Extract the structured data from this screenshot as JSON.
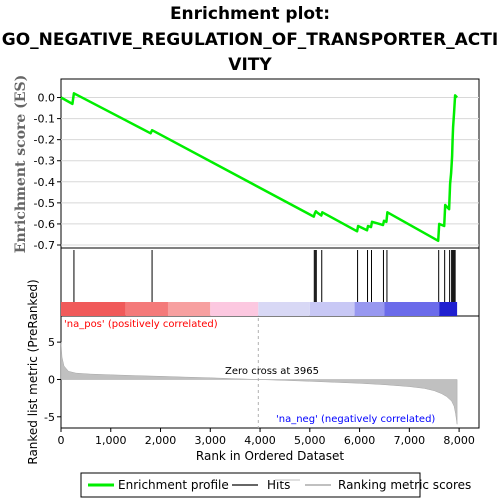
{
  "title_lines": [
    "Enrichment plot:",
    "GO_NEGATIVE_REGULATION_OF_TRANSPORTER_ACTI",
    "VITY"
  ],
  "colors": {
    "enrichment_line": "#00ee00",
    "hits": "#000000",
    "ranking_fill": "#c0c0c0",
    "pos_label": "#ff0000",
    "neg_label": "#0000ff",
    "zero_cross_line": "#b0b0b0"
  },
  "chart_data": {
    "type": "line",
    "xlabel": "Rank in Ordered Dataset",
    "xlim": [
      0,
      8400
    ],
    "x_ticks": [
      0,
      1000,
      2000,
      3000,
      4000,
      5000,
      6000,
      7000,
      8000
    ],
    "x_tick_labels": [
      "0",
      "1,000",
      "2,000",
      "3,000",
      "4,000",
      "5,000",
      "6,000",
      "7,000",
      "8,000"
    ],
    "enrichment_panel": {
      "ylabel": "Enrichment score (ES)",
      "ylim": [
        -0.7,
        0.05
      ],
      "y_ticks": [
        0.0,
        -0.1,
        -0.2,
        -0.3,
        -0.4,
        -0.5,
        -0.6,
        -0.7
      ],
      "y_tick_labels": [
        "0.0",
        "-0.1",
        "-0.2",
        "-0.3",
        "-0.4",
        "-0.5",
        "-0.6",
        "-0.7"
      ],
      "series": [
        {
          "name": "Enrichment profile",
          "x": [
            0,
            230,
            260,
            1800,
            1830,
            5080,
            5100,
            5120,
            5140,
            5230,
            5250,
            5950,
            5970,
            6150,
            6170,
            6230,
            6250,
            6470,
            6490,
            6540,
            6560,
            7580,
            7600,
            7700,
            7720,
            7800,
            7820,
            7840,
            7860,
            7870,
            7880,
            7900,
            7920,
            7960
          ],
          "y": [
            0.0,
            -0.03,
            0.02,
            -0.17,
            -0.155,
            -0.565,
            -0.55,
            -0.54,
            -0.545,
            -0.56,
            -0.545,
            -0.635,
            -0.61,
            -0.63,
            -0.61,
            -0.615,
            -0.59,
            -0.605,
            -0.585,
            -0.59,
            -0.545,
            -0.68,
            -0.6,
            -0.61,
            -0.51,
            -0.53,
            -0.41,
            -0.36,
            -0.28,
            -0.2,
            -0.14,
            -0.07,
            0.01,
            0.0
          ]
        }
      ]
    },
    "hits_panel": {
      "hit_positions": [
        260,
        1830,
        5090,
        5110,
        5130,
        5240,
        5960,
        6160,
        6240,
        6480,
        6550,
        7590,
        7710,
        7810,
        7850,
        7870,
        7880,
        7900,
        7920
      ]
    },
    "ranking_panel": {
      "ylabel": "Ranked list metric (PreRanked)",
      "ylim": [
        -6.5,
        8.5
      ],
      "y_ticks": [
        5,
        0,
        -5
      ],
      "y_tick_labels": [
        "5",
        "0",
        "-5"
      ],
      "zero_cross_rank": 3965,
      "zero_cross_label": "Zero cross at 3965",
      "pos_label": "'na_pos' (positively correlated)",
      "neg_label": "'na_neg' (negatively correlated)",
      "profile_x": [
        0,
        20,
        60,
        150,
        300,
        600,
        1000,
        1500,
        2000,
        2500,
        3000,
        3500,
        3965,
        4500,
        5000,
        5500,
        6000,
        6500,
        7000,
        7300,
        7500,
        7650,
        7750,
        7850,
        7900,
        7930,
        7960
      ],
      "profile_y": [
        5.0,
        3.0,
        1.8,
        1.1,
        0.85,
        0.72,
        0.62,
        0.52,
        0.42,
        0.32,
        0.22,
        0.1,
        0.0,
        -0.12,
        -0.25,
        -0.38,
        -0.52,
        -0.7,
        -0.95,
        -1.2,
        -1.5,
        -1.9,
        -2.3,
        -2.9,
        -3.6,
        -4.6,
        -6.0
      ]
    },
    "color_bar_segments": [
      {
        "from": 0,
        "to": 1300,
        "color": "#f05a5a"
      },
      {
        "from": 1300,
        "to": 2150,
        "color": "#f47a7a"
      },
      {
        "from": 2150,
        "to": 3000,
        "color": "#f7a0a0"
      },
      {
        "from": 3000,
        "to": 3965,
        "color": "#fcc8e0"
      },
      {
        "from": 3965,
        "to": 5000,
        "color": "#d8d8f5"
      },
      {
        "from": 5000,
        "to": 5900,
        "color": "#c8c8f5"
      },
      {
        "from": 5900,
        "to": 6500,
        "color": "#9898f0"
      },
      {
        "from": 6500,
        "to": 7600,
        "color": "#6b6bea"
      },
      {
        "from": 7600,
        "to": 7960,
        "color": "#2020d0"
      }
    ],
    "legend": {
      "position": "bottom",
      "entries": [
        {
          "label": "Enrichment profile",
          "color": "#00ee00",
          "style": "thick-line"
        },
        {
          "label": "Hits",
          "color": "#666666",
          "style": "line"
        },
        {
          "label": "Ranking metric scores",
          "color": "#c0c0c0",
          "style": "line"
        }
      ]
    }
  }
}
